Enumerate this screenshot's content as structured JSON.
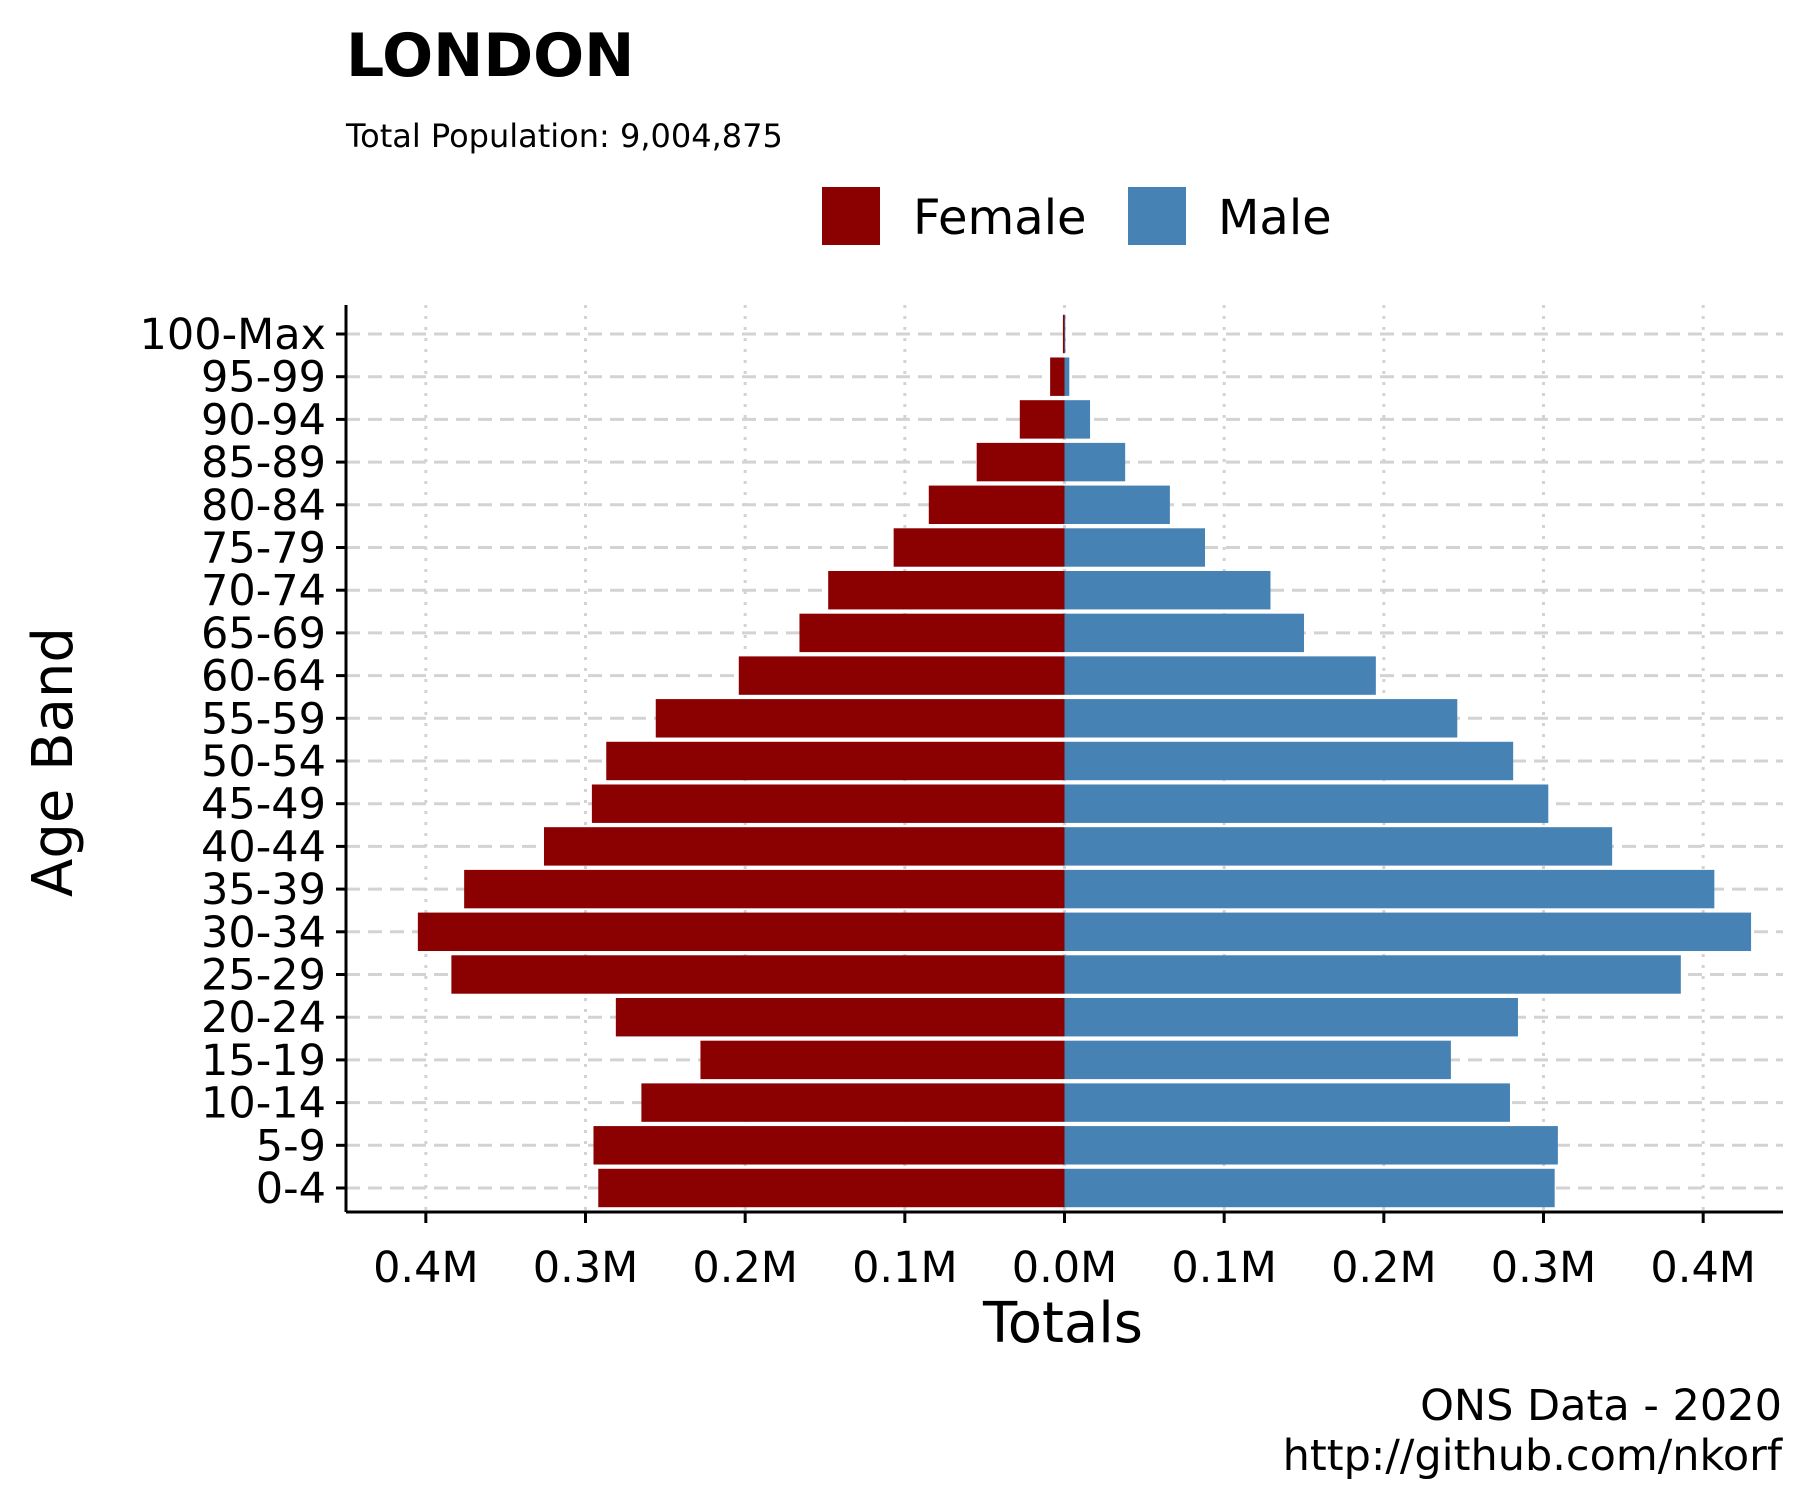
{
  "chart_data": {
    "type": "bar",
    "orientation": "horizontal",
    "layout": "population-pyramid",
    "title": "LONDON",
    "subtitle": "Total Population:  9,004,875",
    "xlabel": "Totals",
    "ylabel": "Age Band",
    "caption_lines": [
      "ONS Data - 2020",
      "http://github.com/nkorf"
    ],
    "categories": [
      "0-4",
      "5-9",
      "10-14",
      "15-19",
      "20-24",
      "25-29",
      "30-34",
      "35-39",
      "40-44",
      "45-49",
      "50-54",
      "55-59",
      "60-64",
      "65-69",
      "70-74",
      "75-79",
      "80-84",
      "85-89",
      "90-94",
      "95-99",
      "100-Max"
    ],
    "series": [
      {
        "name": "Female",
        "color": "#8B0000",
        "side": "left",
        "values": [
          292000,
          295000,
          265000,
          228000,
          281000,
          384000,
          405000,
          376000,
          326000,
          296000,
          287000,
          256000,
          204000,
          166000,
          148000,
          107000,
          85000,
          55000,
          28000,
          9000,
          1000
        ]
      },
      {
        "name": "Male",
        "color": "#4682B4",
        "side": "right",
        "values": [
          307000,
          309000,
          279000,
          242000,
          284000,
          386000,
          430000,
          407000,
          343000,
          303000,
          281000,
          246000,
          195000,
          150000,
          129000,
          88000,
          66000,
          38000,
          16000,
          3000,
          500
        ]
      }
    ],
    "xlim": [
      -450000,
      450000
    ],
    "x_ticks": [
      -400000,
      -300000,
      -200000,
      -100000,
      0,
      100000,
      200000,
      300000,
      400000
    ],
    "x_tick_labels": [
      "0.4M",
      "0.3M",
      "0.2M",
      "0.1M",
      "0.0M",
      "0.1M",
      "0.2M",
      "0.3M",
      "0.4M"
    ],
    "grid": true,
    "legend_position": "top"
  }
}
